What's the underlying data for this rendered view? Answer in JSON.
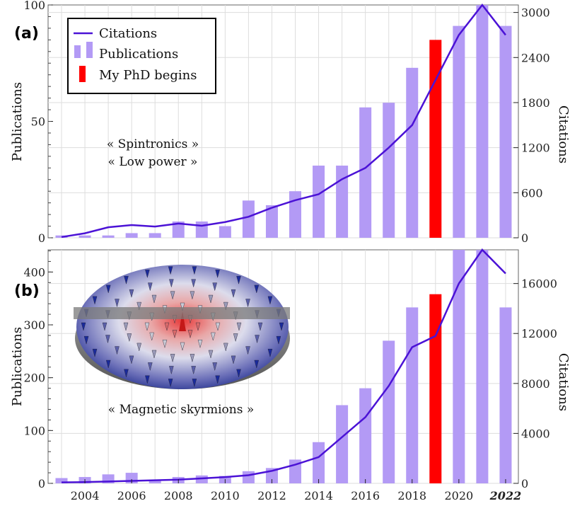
{
  "chart_data": [
    {
      "panel_label": "(a)",
      "type": "bar",
      "x": [
        2003,
        2004,
        2005,
        2006,
        2007,
        2008,
        2009,
        2010,
        2011,
        2012,
        2013,
        2014,
        2015,
        2016,
        2017,
        2018,
        2019,
        2020,
        2021,
        2022
      ],
      "series": [
        {
          "name": "Publications",
          "axis": "left",
          "values": [
            1,
            1,
            1,
            2,
            2,
            7,
            7,
            5,
            16,
            14,
            20,
            31,
            31,
            56,
            58,
            73,
            85,
            91,
            103,
            91
          ]
        },
        {
          "name": "Citations",
          "axis": "right",
          "type": "line",
          "values": [
            10,
            60,
            140,
            170,
            150,
            190,
            160,
            210,
            280,
            400,
            500,
            580,
            780,
            930,
            1200,
            1500,
            2100,
            2700,
            3100,
            2700
          ]
        }
      ],
      "highlight": {
        "name": "My PhD begins",
        "x": 2019,
        "color": "#ff0000"
      },
      "ylabel": "Publications",
      "y2label": "Citations",
      "ylim": [
        0,
        100
      ],
      "y2lim": [
        0,
        3100
      ],
      "yticks": [
        0,
        50,
        100
      ],
      "y2ticks": [
        0,
        600,
        1200,
        1800,
        2400,
        3000
      ],
      "annotations": [
        "« Spintronics »",
        "« Low power »"
      ],
      "legend": {
        "placement": "top-left",
        "entries": [
          "Citations",
          "Publications",
          "My PhD begins"
        ]
      },
      "grid": true
    },
    {
      "panel_label": "(b)",
      "type": "bar",
      "x": [
        2003,
        2004,
        2005,
        2006,
        2007,
        2008,
        2009,
        2010,
        2011,
        2012,
        2013,
        2014,
        2015,
        2016,
        2017,
        2018,
        2019,
        2020,
        2021,
        2022
      ],
      "series": [
        {
          "name": "Publications",
          "axis": "left",
          "values": [
            10,
            12,
            17,
            20,
            6,
            12,
            15,
            14,
            23,
            29,
            45,
            78,
            148,
            180,
            270,
            333,
            358,
            442,
            443,
            333
          ]
        },
        {
          "name": "Citations",
          "axis": "right",
          "type": "line",
          "values": [
            80,
            100,
            150,
            200,
            250,
            300,
            400,
            500,
            650,
            1000,
            1500,
            2100,
            3700,
            5300,
            7800,
            10900,
            11800,
            16000,
            19000,
            16800
          ]
        }
      ],
      "highlight": {
        "name": "My PhD begins",
        "x": 2019,
        "color": "#ff0000"
      },
      "ylabel": "Publications",
      "y2label": "Citations",
      "ylim": [
        0,
        442
      ],
      "y2lim": [
        0,
        18700
      ],
      "yticks": [
        0,
        100,
        200,
        300,
        400
      ],
      "y2ticks": [
        0,
        4000,
        8000,
        12000,
        16000
      ],
      "xticks": [
        "2004",
        "2006",
        "2008",
        "2010",
        "2012",
        "2014",
        "2016",
        "2018",
        "2020",
        "2022"
      ],
      "annotations": [
        "« Magnetic skyrmions »"
      ],
      "grid": true
    }
  ],
  "colors": {
    "bar": "#b39af5",
    "highlight": "#ff0000",
    "line": "#4b12d6",
    "grid": "#dddddd"
  }
}
